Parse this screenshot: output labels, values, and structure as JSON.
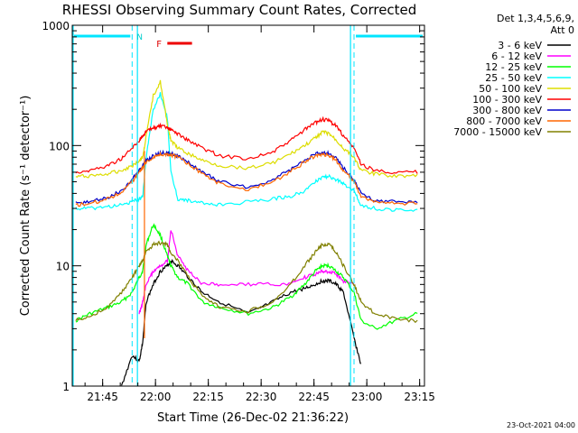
{
  "chart_data": {
    "type": "line",
    "title": "RHESSI Observing Summary Count Rates, Corrected",
    "xlabel": "Start Time (26-Dec-02 21:36:22)",
    "ylabel": "Corrected Count Rate (s⁻¹ detector⁻¹)",
    "yscale": "log",
    "ylim": [
      1,
      1000
    ],
    "xlim_minutes": [
      0,
      100
    ],
    "x_ticks": [
      {
        "minute": 8.63,
        "label": "21:45"
      },
      {
        "minute": 23.63,
        "label": "22:00"
      },
      {
        "minute": 38.63,
        "label": "22:15"
      },
      {
        "minute": 53.63,
        "label": "22:30"
      },
      {
        "minute": 68.63,
        "label": "22:45"
      },
      {
        "minute": 83.63,
        "label": "23:00"
      },
      {
        "minute": 98.63,
        "label": "23:15"
      }
    ],
    "y_ticks": [
      {
        "value": 1,
        "label": "1"
      },
      {
        "value": 10,
        "label": "10"
      },
      {
        "value": 100,
        "label": "100"
      },
      {
        "value": 1000,
        "label": "1000"
      }
    ],
    "legend_header": [
      "Det 1,3,4,5,6,9,",
      "Att 0"
    ],
    "legend_position": "right",
    "annotations": {
      "night_label": "N",
      "flare_label": "F",
      "night_intervals_minutes": [
        [
          0,
          17
        ],
        [
          80,
          100
        ]
      ],
      "flare_interval_minutes": [
        27,
        34
      ],
      "flare_value": 1000
    },
    "footer_date": "23-Oct-2021 04:00",
    "x": [
      1,
      5,
      10,
      14,
      17,
      19,
      20,
      21,
      23,
      25,
      27,
      28,
      30,
      33,
      37,
      42,
      50,
      57,
      62,
      66,
      69,
      71,
      73,
      75,
      77,
      80,
      82,
      86,
      92,
      98
    ],
    "series": [
      {
        "name": "3 - 6 keV",
        "color": "#000000",
        "values": [
          null,
          null,
          null,
          1,
          1.8,
          1.6,
          2.3,
          5,
          7,
          9,
          10,
          11,
          10,
          8,
          6,
          5,
          4,
          5,
          6,
          6.5,
          7,
          7.5,
          7.5,
          7,
          6,
          2.5,
          1.5,
          null,
          null,
          null
        ]
      },
      {
        "name": "6 - 12 keV",
        "color": "#ff00ff",
        "values": [
          null,
          null,
          null,
          null,
          null,
          4,
          5,
          7,
          9,
          10,
          11,
          20,
          12,
          9,
          7,
          7,
          7,
          7,
          7,
          8,
          8.5,
          9,
          9,
          8.5,
          7.5,
          7,
          null,
          null,
          null,
          null
        ]
      },
      {
        "name": "12 - 25 keV",
        "color": "#00ff00",
        "values": [
          3.5,
          4,
          4.5,
          5,
          6,
          8,
          9,
          15,
          22,
          18,
          12,
          10,
          8,
          7,
          5,
          4.5,
          4,
          4.5,
          5.5,
          7,
          9,
          10,
          10,
          9,
          8,
          6,
          3.5,
          3,
          3.5,
          4
        ]
      },
      {
        "name": "25 - 50 keV",
        "color": "#00ffff",
        "values": [
          30,
          30,
          31,
          32,
          34,
          36,
          38,
          80,
          200,
          270,
          170,
          60,
          36,
          35,
          33,
          32,
          34,
          36,
          38,
          42,
          50,
          55,
          55,
          52,
          48,
          42,
          32,
          30,
          29,
          29
        ]
      },
      {
        "name": "50 - 100 keV",
        "color": "#dddd00",
        "values": [
          55,
          56,
          58,
          62,
          68,
          75,
          80,
          120,
          260,
          340,
          150,
          110,
          95,
          85,
          75,
          68,
          65,
          72,
          85,
          100,
          115,
          130,
          125,
          110,
          95,
          80,
          62,
          58,
          56,
          56
        ]
      },
      {
        "name": "100 - 300 keV",
        "color": "#ff0000",
        "values": [
          60,
          62,
          68,
          78,
          95,
          110,
          120,
          130,
          140,
          145,
          140,
          135,
          125,
          110,
          95,
          82,
          78,
          88,
          110,
          135,
          155,
          165,
          160,
          145,
          120,
          95,
          70,
          62,
          60,
          60
        ]
      },
      {
        "name": "300 - 800 keV",
        "color": "#0000cc",
        "values": [
          33,
          34,
          37,
          42,
          52,
          62,
          68,
          75,
          82,
          86,
          87,
          86,
          82,
          72,
          60,
          50,
          45,
          52,
          63,
          75,
          85,
          88,
          86,
          78,
          65,
          52,
          40,
          35,
          34,
          34
        ]
      },
      {
        "name": "800 - 7000 keV",
        "color": "#ff6600",
        "values": [
          32,
          33,
          36,
          41,
          50,
          60,
          66,
          73,
          80,
          84,
          85,
          84,
          80,
          70,
          58,
          48,
          43,
          50,
          61,
          73,
          82,
          85,
          83,
          75,
          62,
          50,
          38,
          34,
          33,
          33
        ]
      },
      {
        "name": "7000 - 15000 keV",
        "color": "#808000",
        "values": [
          3.5,
          3.8,
          4.5,
          6,
          8,
          10,
          11,
          13,
          15,
          15.5,
          15,
          13,
          11,
          8,
          5.5,
          4.5,
          4.2,
          5,
          7,
          10,
          13,
          15,
          15,
          13,
          10,
          7,
          5,
          4,
          3.6,
          3.5
        ]
      }
    ]
  }
}
